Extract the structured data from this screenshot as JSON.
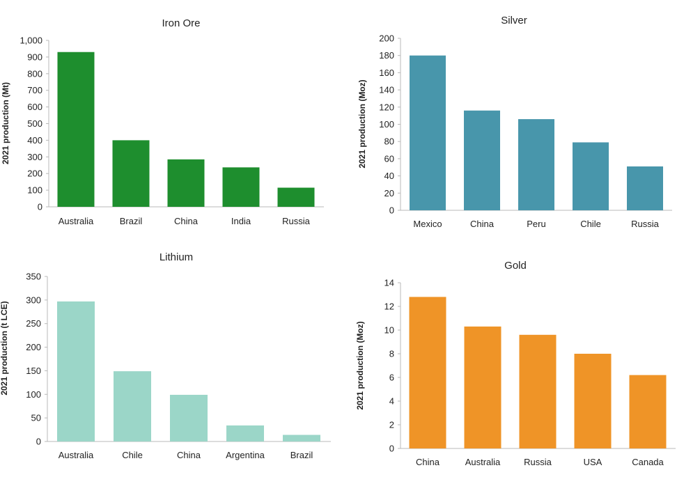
{
  "chart_data": [
    {
      "type": "bar",
      "title": "Iron Ore",
      "ylabel": "2021 production (Mt)",
      "categories": [
        "Australia",
        "Brazil",
        "China",
        "India",
        "Russia"
      ],
      "values": [
        930,
        400,
        285,
        237,
        115
      ],
      "ylim": [
        0,
        1000
      ],
      "yticks": [
        0,
        100,
        200,
        300,
        400,
        500,
        600,
        700,
        800,
        900,
        1000
      ],
      "ytick_labels": [
        "0",
        "100",
        "200",
        "300",
        "400",
        "500",
        "600",
        "700",
        "800",
        "900",
        "1,000"
      ],
      "color": "#1e8e2e",
      "grid": false
    },
    {
      "type": "bar",
      "title": "Silver",
      "ylabel": "2021 production (Moz)",
      "categories": [
        "Mexico",
        "China",
        "Peru",
        "Chile",
        "Russia"
      ],
      "values": [
        180,
        116,
        106,
        79,
        51
      ],
      "ylim": [
        0,
        200
      ],
      "yticks": [
        0,
        20,
        40,
        60,
        80,
        100,
        120,
        140,
        160,
        180,
        200
      ],
      "ytick_labels": [
        "0",
        "20",
        "40",
        "60",
        "80",
        "100",
        "120",
        "140",
        "160",
        "180",
        "200"
      ],
      "color": "#4896ab",
      "grid": false
    },
    {
      "type": "bar",
      "title": "Lithium",
      "ylabel": "2021 production (t LCE)",
      "categories": [
        "Australia",
        "Chile",
        "China",
        "Argentina",
        "Brazil"
      ],
      "values": [
        297,
        149,
        99,
        34,
        14
      ],
      "ylim": [
        0,
        350
      ],
      "yticks": [
        0,
        50,
        100,
        150,
        200,
        250,
        300,
        350
      ],
      "ytick_labels": [
        "0",
        "50",
        "100",
        "150",
        "200",
        "250",
        "300",
        "350"
      ],
      "color": "#9bd6c8",
      "grid": false
    },
    {
      "type": "bar",
      "title": "Gold",
      "ylabel": "2021 production (Moz)",
      "categories": [
        "China",
        "Australia",
        "Russia",
        "USA",
        "Canada"
      ],
      "values": [
        12.8,
        10.3,
        9.6,
        8.0,
        6.2
      ],
      "ylim": [
        0,
        14
      ],
      "yticks": [
        0,
        2,
        4,
        6,
        8,
        10,
        12,
        14
      ],
      "ytick_labels": [
        "0",
        "2",
        "4",
        "6",
        "8",
        "10",
        "12",
        "14"
      ],
      "color": "#ef9427",
      "grid": false
    }
  ]
}
